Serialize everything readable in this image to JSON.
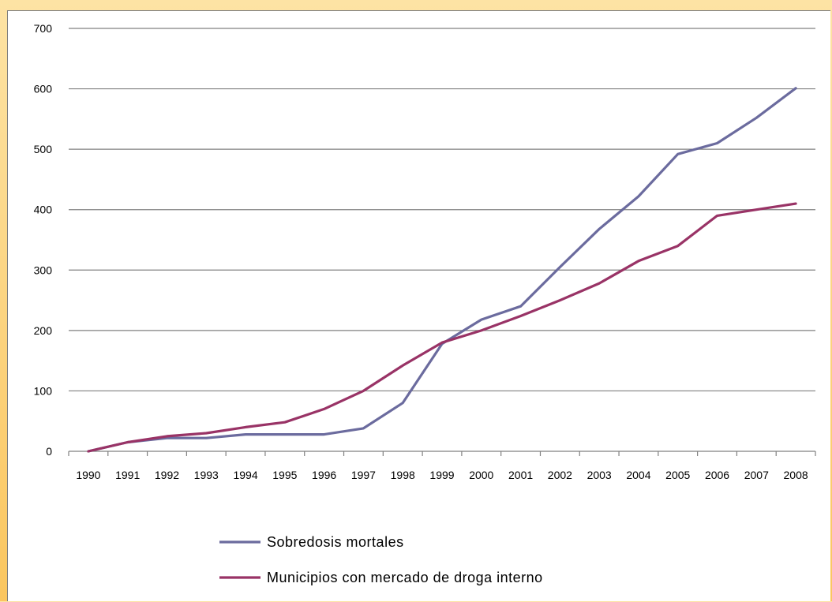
{
  "chart_data": {
    "type": "line",
    "title": "",
    "xlabel": "",
    "ylabel": "",
    "categories": [
      "1990",
      "1991",
      "1992",
      "1993",
      "1994",
      "1995",
      "1996",
      "1997",
      "1998",
      "1999",
      "2000",
      "2001",
      "2002",
      "2003",
      "2004",
      "2005",
      "2006",
      "2007",
      "2008"
    ],
    "ylim": [
      0,
      700
    ],
    "yticks": [
      0,
      100,
      200,
      300,
      400,
      500,
      600,
      700
    ],
    "grid": true,
    "legend_position": "bottom",
    "series": [
      {
        "name": "Sobredosis mortales",
        "color": "#6b6b9e",
        "values": [
          0,
          15,
          22,
          22,
          28,
          28,
          28,
          38,
          80,
          178,
          218,
          240,
          305,
          368,
          422,
          492,
          510,
          552,
          601
        ]
      },
      {
        "name": "Municipios con mercado de droga interno",
        "color": "#993366",
        "values": [
          0,
          15,
          25,
          30,
          40,
          48,
          70,
          100,
          142,
          180,
          200,
          224,
          250,
          278,
          315,
          340,
          390,
          400,
          410
        ]
      }
    ]
  }
}
